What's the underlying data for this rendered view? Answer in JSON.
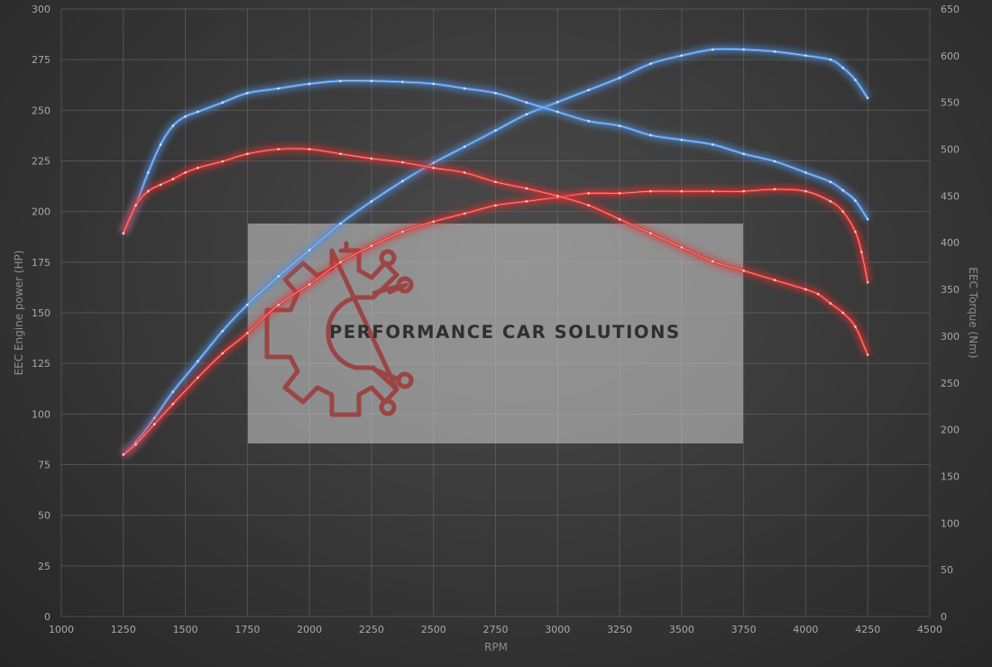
{
  "chart_data": {
    "type": "line",
    "xlabel": "RPM",
    "ylabel_left": "EEC Engine power (HP)",
    "ylabel_right": "EEC Torque (Nm)",
    "xlim": [
      1000,
      4500
    ],
    "ylim_left": [
      0,
      300
    ],
    "ylim_right": [
      0,
      650
    ],
    "grid": true,
    "x_ticks": [
      1000,
      1250,
      1500,
      1750,
      2000,
      2250,
      2500,
      2750,
      3000,
      3250,
      3500,
      3750,
      4000,
      4250,
      4500
    ],
    "y_left_ticks": [
      0,
      25,
      50,
      75,
      100,
      125,
      150,
      175,
      200,
      225,
      250,
      275,
      300
    ],
    "y_right_ticks": [
      0,
      50,
      100,
      150,
      200,
      250,
      300,
      350,
      400,
      450,
      500,
      550,
      600,
      650
    ],
    "series": [
      {
        "axis": "left",
        "color": "#4f8fe0",
        "x": [
          1250,
          1300,
          1375,
          1450,
          1550,
          1650,
          1750,
          1875,
          2000,
          2125,
          2250,
          2375,
          2500,
          2625,
          2750,
          2875,
          3000,
          3125,
          3250,
          3375,
          3500,
          3625,
          3750,
          3875,
          4000,
          4100,
          4150,
          4200,
          4250
        ],
        "y": [
          80,
          86,
          98,
          111,
          126,
          141,
          154,
          168,
          181,
          194,
          205,
          215,
          224,
          232,
          240,
          248,
          254,
          260,
          266,
          273,
          277,
          280,
          280,
          279,
          277,
          275,
          271,
          265,
          256
        ]
      },
      {
        "axis": "right",
        "color": "#4f8fe0",
        "x": [
          1250,
          1300,
          1350,
          1400,
          1450,
          1500,
          1550,
          1650,
          1750,
          1875,
          2000,
          2125,
          2250,
          2375,
          2500,
          2625,
          2750,
          2875,
          3000,
          3125,
          3250,
          3375,
          3500,
          3625,
          3750,
          3875,
          4000,
          4100,
          4150,
          4200,
          4250
        ],
        "y": [
          410,
          440,
          475,
          505,
          525,
          535,
          540,
          550,
          560,
          565,
          570,
          573,
          573,
          572,
          570,
          565,
          560,
          550,
          540,
          530,
          525,
          515,
          510,
          505,
          495,
          487,
          475,
          465,
          456,
          445,
          425
        ]
      },
      {
        "axis": "left",
        "color": "#e03030",
        "x": [
          1250,
          1300,
          1375,
          1450,
          1550,
          1650,
          1750,
          1875,
          2000,
          2125,
          2250,
          2375,
          2500,
          2625,
          2750,
          2875,
          3000,
          3125,
          3250,
          3375,
          3500,
          3625,
          3750,
          3875,
          4000,
          4100,
          4150,
          4200,
          4225,
          4250
        ],
        "y": [
          80,
          85,
          95,
          105,
          118,
          130,
          140,
          154,
          164,
          175,
          183,
          190,
          195,
          199,
          203,
          205,
          207,
          209,
          209,
          210,
          210,
          210,
          210,
          211,
          210,
          205,
          200,
          190,
          180,
          165
        ]
      },
      {
        "axis": "right",
        "color": "#e03030",
        "x": [
          1250,
          1300,
          1350,
          1400,
          1450,
          1500,
          1550,
          1650,
          1750,
          1875,
          2000,
          2125,
          2250,
          2375,
          2500,
          2625,
          2750,
          2875,
          3000,
          3125,
          3250,
          3375,
          3500,
          3625,
          3750,
          3875,
          4000,
          4050,
          4100,
          4150,
          4200,
          4250
        ],
        "y": [
          410,
          440,
          455,
          462,
          468,
          475,
          480,
          487,
          495,
          500,
          500,
          495,
          490,
          486,
          480,
          475,
          465,
          458,
          450,
          440,
          425,
          410,
          395,
          380,
          370,
          360,
          350,
          345,
          335,
          325,
          310,
          280
        ]
      }
    ]
  },
  "watermark": {
    "text": "PERFORMANCE CAR SOLUTIONS",
    "logo_icon": "gear-circuit-logo-icon"
  }
}
